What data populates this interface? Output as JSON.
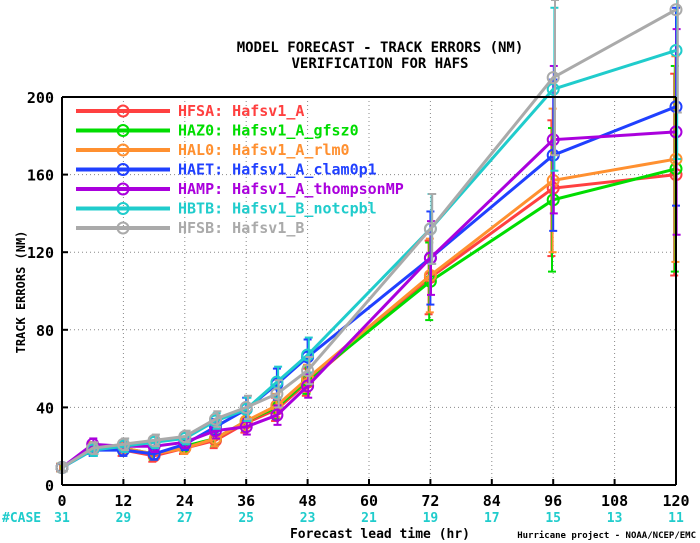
{
  "title_line1": "MODEL FORECAST - TRACK ERRORS (NM)",
  "title_line2": "VERIFICATION FOR HAFS",
  "credit": "Hurricane project - NOAA/NCEP/EMC",
  "case_label": "#CASE",
  "chart_data": {
    "type": "line",
    "title": "MODEL FORECAST - TRACK ERRORS (NM)",
    "subtitle": "VERIFICATION FOR HAFS",
    "xlabel": "Forecast lead time (hr)",
    "ylabel": "TRACK ERRORS (NM)",
    "xlim": [
      0,
      120
    ],
    "ylim": [
      0,
      200
    ],
    "xticks": [
      "0",
      "12",
      "24",
      "36",
      "48",
      "60",
      "72",
      "84",
      "96",
      "108",
      "120"
    ],
    "yticks": [
      "0",
      "40",
      "80",
      "120",
      "160",
      "200"
    ],
    "case_counts": [
      "31",
      "29",
      "27",
      "25",
      "23",
      "21",
      "19",
      "17",
      "15",
      "13",
      "11"
    ],
    "x": [
      0,
      6,
      12,
      18,
      24,
      30,
      36,
      42,
      48,
      72,
      96,
      120
    ],
    "grid": true,
    "legend_position": "top-left",
    "series": [
      {
        "name": "HFSA: Hafsv1_A",
        "color": "#ff4040",
        "values": [
          9,
          19,
          18,
          15,
          19,
          23,
          32,
          39,
          53,
          107,
          153,
          160
        ],
        "error_low": [
          7,
          16,
          15,
          12,
          16,
          19,
          27,
          33,
          46,
          88,
          118,
          108
        ],
        "error_high": [
          11,
          22,
          21,
          18,
          22,
          27,
          37,
          45,
          60,
          126,
          188,
          212
        ]
      },
      {
        "name": "HAZ0: Hafsv1_A_gfsz0",
        "color": "#00dd00",
        "values": [
          9,
          19,
          19,
          16,
          20,
          24,
          33,
          40,
          54,
          105,
          147,
          163
        ],
        "error_low": [
          7,
          16,
          16,
          13,
          17,
          20,
          28,
          34,
          47,
          85,
          110,
          110
        ],
        "error_high": [
          11,
          22,
          22,
          19,
          23,
          28,
          38,
          46,
          61,
          125,
          184,
          216
        ]
      },
      {
        "name": "HAL0: Hafsv1_A_rlm0",
        "color": "#ff9030",
        "values": [
          9,
          19,
          19,
          16,
          19,
          24,
          33,
          41,
          55,
          108,
          157,
          168
        ],
        "error_low": [
          7,
          16,
          16,
          13,
          16,
          20,
          28,
          35,
          48,
          89,
          120,
          115
        ],
        "error_high": [
          11,
          22,
          22,
          19,
          22,
          28,
          38,
          47,
          62,
          127,
          194,
          221
        ]
      },
      {
        "name": "HAET: Hafsv1_A_clam0p1",
        "color": "#2040ff",
        "values": [
          9,
          18,
          18,
          16,
          21,
          30,
          39,
          52,
          66,
          117,
          170,
          195
        ],
        "error_low": [
          7,
          15,
          15,
          13,
          18,
          26,
          33,
          44,
          57,
          93,
          131,
          144
        ],
        "error_high": [
          11,
          21,
          21,
          19,
          24,
          34,
          45,
          60,
          75,
          141,
          209,
          246
        ]
      },
      {
        "name": "HAMP: Hafsv1_A_thompsonMP",
        "color": "#aa00dd",
        "values": [
          9,
          21,
          20,
          20,
          22,
          28,
          30,
          36,
          51,
          117,
          178,
          182
        ],
        "error_low": [
          7,
          18,
          17,
          17,
          19,
          24,
          26,
          31,
          45,
          98,
          140,
          129
        ],
        "error_high": [
          11,
          24,
          23,
          23,
          25,
          32,
          34,
          41,
          57,
          136,
          216,
          235
        ]
      },
      {
        "name": "HBTB: Hafsv1_B_notcpbl",
        "color": "#20cccc",
        "values": [
          9,
          18,
          20,
          22,
          24,
          33,
          39,
          53,
          67,
          132,
          204,
          224
        ],
        "error_low": [
          7,
          15,
          17,
          19,
          21,
          29,
          33,
          45,
          58,
          114,
          162,
          168
        ],
        "error_high": [
          11,
          21,
          23,
          25,
          27,
          37,
          45,
          61,
          76,
          150,
          246,
          280
        ]
      },
      {
        "name": "HFSB: Hafsv1_B",
        "color": "#aaaaaa",
        "values": [
          9,
          19,
          21,
          23,
          25,
          34,
          40,
          47,
          59,
          132,
          210,
          245
        ],
        "error_low": [
          7,
          16,
          18,
          20,
          22,
          30,
          34,
          40,
          52,
          114,
          170,
          192
        ],
        "error_high": [
          11,
          22,
          24,
          26,
          28,
          38,
          46,
          54,
          66,
          150,
          250,
          300
        ]
      }
    ]
  }
}
